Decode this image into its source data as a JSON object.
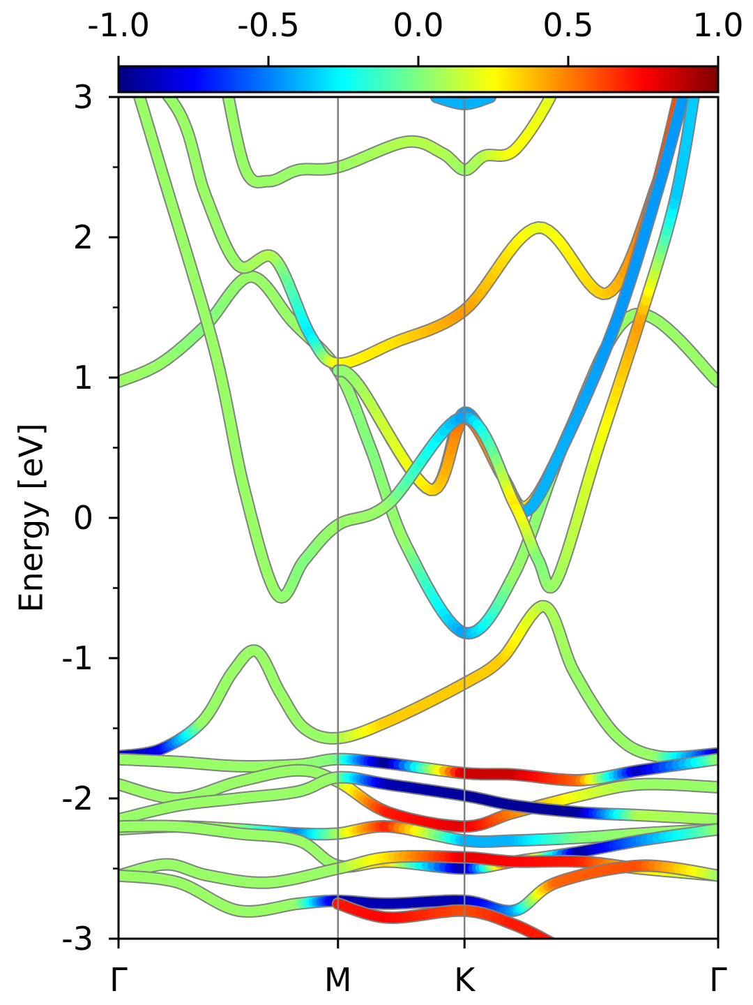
{
  "chart_data": {
    "type": "line",
    "subtype": "projected band structure (fat bands)",
    "title": "",
    "xlabel": "",
    "ylabel": "Energy [eV]",
    "ylim": [
      -3,
      3
    ],
    "yticks": [
      "-3",
      "-2",
      "-1",
      "0",
      "1",
      "2",
      "3"
    ],
    "y_minor_ticks": [
      -2.5,
      -1.5,
      -0.5,
      0.5,
      1.5,
      2.5
    ],
    "xlim": [
      0,
      1
    ],
    "kpoints": [
      {
        "label": "Γ",
        "x": 0.0
      },
      {
        "label": "M",
        "x": 0.366
      },
      {
        "label": "K",
        "x": 0.577
      },
      {
        "label": "Γ",
        "x": 1.0
      }
    ],
    "grid": false,
    "colorbar": {
      "colormap": "jet",
      "range": [
        -1.0,
        1.0
      ],
      "ticks": [
        "-1.0",
        "-0.5",
        "0.0",
        "0.5",
        "1.0"
      ],
      "position": "top",
      "stops": [
        "#00007f",
        "#0000ff",
        "#007fff",
        "#00ffff",
        "#7fff7f",
        "#ffff00",
        "#ff7f00",
        "#ff0000",
        "#7f0000"
      ]
    },
    "series": [
      {
        "points": [
          [
            0.0,
            0.97
          ],
          [
            0.07,
            1.1
          ],
          [
            0.145,
            1.37
          ],
          [
            0.22,
            1.72
          ],
          [
            0.29,
            1.4
          ],
          [
            0.366,
            1.05
          ],
          [
            0.42,
            0.5
          ],
          [
            0.48,
            -0.2
          ],
          [
            0.577,
            -0.82
          ],
          [
            0.66,
            -0.4
          ],
          [
            0.75,
            0.6
          ],
          [
            0.86,
            1.45
          ],
          [
            1.0,
            0.97
          ]
        ],
        "color": [
          0.05,
          0.05,
          0.0,
          0.05,
          0.05,
          0.05,
          0.0,
          0.05,
          -0.45,
          0.05,
          0.0,
          0.05,
          0.05
        ]
      },
      {
        "points": [
          [
            0.0,
            3.4
          ],
          [
            0.1,
            2.9
          ],
          [
            0.145,
            2.3
          ],
          [
            0.2,
            1.8
          ],
          [
            0.26,
            1.85
          ],
          [
            0.32,
            1.3
          ],
          [
            0.366,
            1.1
          ],
          [
            0.46,
            1.25
          ],
          [
            0.577,
            1.48
          ],
          [
            0.7,
            2.07
          ],
          [
            0.815,
            1.6
          ],
          [
            0.9,
            2.4
          ],
          [
            0.94,
            3.0
          ],
          [
            0.96,
            3.3
          ]
        ],
        "color": [
          0.0,
          0.05,
          0.05,
          0.05,
          0.1,
          -0.3,
          0.25,
          0.3,
          0.45,
          0.2,
          0.35,
          0.6,
          0.7,
          0.7
        ]
      },
      {
        "points": [
          [
            0.366,
            1.05
          ],
          [
            0.4,
            0.95
          ],
          [
            0.52,
            0.2
          ],
          [
            0.577,
            0.75
          ],
          [
            0.64,
            0.3
          ],
          [
            0.68,
            0.08
          ],
          [
            0.74,
            0.5
          ],
          [
            0.83,
            1.4
          ],
          [
            0.9,
            2.4
          ],
          [
            0.95,
            3.3
          ]
        ],
        "color": [
          0.0,
          0.05,
          0.3,
          -0.45,
          -0.4,
          0.3,
          0.4,
          0.55,
          0.6,
          0.6
        ]
      },
      {
        "points": [
          [
            0.366,
            1.05
          ],
          [
            0.4,
            0.95
          ],
          [
            0.52,
            0.2
          ],
          [
            0.577,
            0.71
          ],
          [
            0.64,
            0.3
          ],
          [
            0.68,
            0.05
          ],
          [
            0.74,
            0.5
          ],
          [
            0.83,
            1.4
          ],
          [
            0.9,
            2.35
          ],
          [
            0.96,
            3.3
          ]
        ],
        "color": [
          0.0,
          0.05,
          0.3,
          0.55,
          0.45,
          -0.4,
          -0.4,
          -0.45,
          -0.45,
          -0.45
        ]
      },
      {
        "points": [
          [
            0.0,
            3.5
          ],
          [
            0.07,
            2.5
          ],
          [
            0.16,
            1.2
          ],
          [
            0.21,
            0.2
          ],
          [
            0.265,
            -0.55
          ],
          [
            0.31,
            -0.3
          ],
          [
            0.366,
            -0.05
          ],
          [
            0.45,
            0.1
          ],
          [
            0.577,
            0.72
          ],
          [
            0.66,
            0.1
          ],
          [
            0.7,
            -0.3
          ],
          [
            0.73,
            -0.45
          ],
          [
            0.8,
            0.5
          ],
          [
            0.87,
            1.42
          ],
          [
            0.93,
            2.3
          ],
          [
            0.97,
            3.3
          ]
        ],
        "color": [
          0.05,
          0.05,
          0.05,
          0.05,
          0.05,
          0.0,
          0.05,
          0.05,
          -0.45,
          0.3,
          0.0,
          0.05,
          0.2,
          0.45,
          -0.35,
          -0.35
        ]
      },
      {
        "points": [
          [
            0.0,
            -1.7
          ],
          [
            0.07,
            -1.65
          ],
          [
            0.14,
            -1.45
          ],
          [
            0.19,
            -1.1
          ],
          [
            0.23,
            -0.95
          ],
          [
            0.27,
            -1.25
          ],
          [
            0.31,
            -1.5
          ],
          [
            0.366,
            -1.57
          ],
          [
            0.45,
            -1.45
          ],
          [
            0.577,
            -1.18
          ],
          [
            0.64,
            -1.0
          ],
          [
            0.71,
            -0.63
          ],
          [
            0.76,
            -1.1
          ],
          [
            0.83,
            -1.55
          ],
          [
            0.9,
            -1.7
          ],
          [
            1.0,
            -1.68
          ]
        ],
        "color": [
          -0.9,
          -0.8,
          0.05,
          0.05,
          0.05,
          0.05,
          0.05,
          0.05,
          0.35,
          0.35,
          0.35,
          0.1,
          0.05,
          0.05,
          0.05,
          -0.9
        ]
      },
      {
        "points": [
          [
            0.0,
            -1.72
          ],
          [
            0.1,
            -1.74
          ],
          [
            0.2,
            -1.77
          ],
          [
            0.3,
            -1.76
          ],
          [
            0.366,
            -1.72
          ],
          [
            0.45,
            -1.75
          ],
          [
            0.577,
            -1.82
          ],
          [
            0.66,
            -1.83
          ],
          [
            0.77,
            -1.87
          ],
          [
            0.87,
            -1.8
          ],
          [
            1.0,
            -1.72
          ]
        ],
        "color": [
          0.05,
          0.05,
          0.05,
          0.05,
          0.0,
          -1.0,
          0.85,
          0.85,
          0.55,
          -0.9,
          0.05
        ]
      },
      {
        "points": [
          [
            0.0,
            -1.9
          ],
          [
            0.1,
            -2.0
          ],
          [
            0.2,
            -1.88
          ],
          [
            0.3,
            -1.8
          ],
          [
            0.366,
            -1.88
          ],
          [
            0.45,
            -2.1
          ],
          [
            0.577,
            -2.2
          ],
          [
            0.66,
            -2.1
          ],
          [
            0.77,
            -1.98
          ],
          [
            0.87,
            -1.9
          ],
          [
            1.0,
            -1.92
          ]
        ],
        "color": [
          0.05,
          0.05,
          0.05,
          0.05,
          0.05,
          0.7,
          0.8,
          0.5,
          0.2,
          0.05,
          0.05
        ]
      },
      {
        "points": [
          [
            0.0,
            -2.15
          ],
          [
            0.1,
            -2.05
          ],
          [
            0.2,
            -2.0
          ],
          [
            0.3,
            -1.95
          ],
          [
            0.366,
            -1.85
          ],
          [
            0.45,
            -1.9
          ],
          [
            0.577,
            -1.98
          ],
          [
            0.66,
            -2.05
          ],
          [
            0.77,
            -2.1
          ],
          [
            0.87,
            -2.12
          ],
          [
            1.0,
            -2.15
          ]
        ],
        "color": [
          0.05,
          0.05,
          0.05,
          0.05,
          0.05,
          -0.9,
          -0.95,
          -0.95,
          -0.95,
          0.1,
          0.05
        ]
      },
      {
        "points": [
          [
            0.0,
            -2.22
          ],
          [
            0.1,
            -2.2
          ],
          [
            0.2,
            -2.22
          ],
          [
            0.3,
            -2.25
          ],
          [
            0.366,
            -2.25
          ],
          [
            0.45,
            -2.2
          ],
          [
            0.577,
            -2.3
          ],
          [
            0.66,
            -2.3
          ],
          [
            0.77,
            -2.28
          ],
          [
            0.87,
            -2.25
          ],
          [
            1.0,
            -2.22
          ]
        ],
        "color": [
          0.05,
          0.05,
          0.05,
          -0.5,
          0.05,
          0.7,
          -0.4,
          -0.4,
          0.0,
          0.05,
          0.05
        ]
      },
      {
        "points": [
          [
            0.0,
            -2.2
          ],
          [
            0.1,
            -2.2
          ],
          [
            0.2,
            -2.25
          ],
          [
            0.3,
            -2.3
          ],
          [
            0.366,
            -2.48
          ],
          [
            0.45,
            -2.45
          ],
          [
            0.577,
            -2.5
          ],
          [
            0.66,
            -2.45
          ],
          [
            0.77,
            -2.38
          ],
          [
            0.87,
            -2.3
          ],
          [
            1.0,
            -2.22
          ]
        ],
        "color": [
          0.05,
          0.05,
          0.05,
          0.05,
          0.05,
          0.35,
          -0.95,
          0.8,
          -0.95,
          -0.5,
          0.05
        ]
      },
      {
        "points": [
          [
            0.0,
            -2.55
          ],
          [
            0.08,
            -2.47
          ],
          [
            0.15,
            -2.55
          ],
          [
            0.25,
            -2.6
          ],
          [
            0.366,
            -2.5
          ],
          [
            0.45,
            -2.42
          ],
          [
            0.577,
            -2.42
          ],
          [
            0.66,
            -2.45
          ],
          [
            0.77,
            -2.45
          ],
          [
            0.87,
            -2.5
          ],
          [
            1.0,
            -2.55
          ]
        ],
        "color": [
          0.05,
          0.05,
          0.05,
          0.05,
          0.05,
          0.3,
          0.8,
          0.75,
          0.7,
          0.3,
          0.05
        ]
      },
      {
        "points": [
          [
            0.0,
            -2.55
          ],
          [
            0.1,
            -2.6
          ],
          [
            0.2,
            -2.8
          ],
          [
            0.3,
            -2.75
          ],
          [
            0.366,
            -2.73
          ],
          [
            0.45,
            -2.75
          ],
          [
            0.577,
            -2.73
          ],
          [
            0.66,
            -2.8
          ],
          [
            0.73,
            -2.6
          ],
          [
            0.87,
            -2.48
          ],
          [
            1.0,
            -2.55
          ]
        ],
        "color": [
          0.05,
          0.05,
          0.05,
          0.05,
          -0.9,
          -0.9,
          -0.9,
          -0.45,
          0.55,
          0.6,
          0.05
        ]
      },
      {
        "points": [
          [
            0.366,
            -2.75
          ],
          [
            0.45,
            -2.85
          ],
          [
            0.577,
            -2.8
          ],
          [
            0.66,
            -2.9
          ],
          [
            0.73,
            -3.05
          ]
        ],
        "color": [
          0.7,
          0.75,
          0.6,
          0.7,
          0.7
        ]
      },
      {
        "points": [
          [
            0.17,
            3.3
          ],
          [
            0.21,
            2.5
          ],
          [
            0.25,
            2.4
          ],
          [
            0.3,
            2.48
          ],
          [
            0.366,
            2.5
          ],
          [
            0.48,
            2.68
          ],
          [
            0.54,
            2.6
          ],
          [
            0.577,
            2.48
          ],
          [
            0.61,
            2.58
          ],
          [
            0.66,
            2.62
          ],
          [
            0.72,
            3.0
          ],
          [
            0.74,
            3.3
          ]
        ],
        "color": [
          0.05,
          0.05,
          0.05,
          0.05,
          0.05,
          0.1,
          0.1,
          0.05,
          0.1,
          0.25,
          0.2,
          0.2
        ]
      },
      {
        "points": [
          [
            0.53,
            3.0
          ],
          [
            0.577,
            2.95
          ],
          [
            0.62,
            3.0
          ]
        ],
        "color": [
          -0.4,
          -0.4,
          -0.4
        ]
      }
    ]
  }
}
